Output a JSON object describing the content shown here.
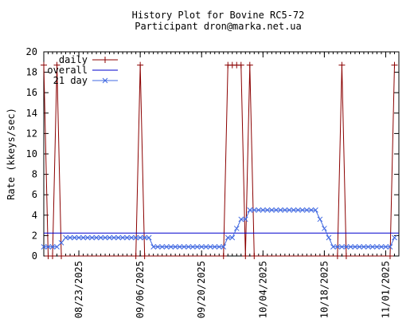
{
  "chart_data": {
    "type": "line",
    "title": "History Plot for Bovine RC5-72",
    "subtitle": "Participant dron@marka.net.ua",
    "xlabel": "",
    "ylabel": "Rate (kkeys/sec)",
    "x_type": "date",
    "xlim": [
      "2025-08-15",
      "2025-11-04"
    ],
    "ylim": [
      0,
      20
    ],
    "y_ticks": [
      0,
      2,
      4,
      6,
      8,
      10,
      12,
      14,
      16,
      18,
      20
    ],
    "x_ticks": [
      {
        "date": "2025-08-23",
        "label": "08/23/2025"
      },
      {
        "date": "2025-09-06",
        "label": "09/06/2025"
      },
      {
        "date": "2025-09-20",
        "label": "09/20/2025"
      },
      {
        "date": "2025-10-04",
        "label": "10/04/2025"
      },
      {
        "date": "2025-10-18",
        "label": "10/18/2025"
      },
      {
        "date": "2025-11-01",
        "label": "11/01/2025"
      }
    ],
    "legend_position": "top-left",
    "grid": false,
    "series": [
      {
        "name": "daily",
        "color": "#8b0000",
        "marker": "plus",
        "points": [
          {
            "x": "2025-08-15",
            "y": 18.7
          },
          {
            "x": "2025-08-16",
            "y": 0
          },
          {
            "x": "2025-08-17",
            "y": 0
          },
          {
            "x": "2025-08-18",
            "y": 18.7
          },
          {
            "x": "2025-08-19",
            "y": 0
          },
          {
            "x": "2025-09-05",
            "y": 0
          },
          {
            "x": "2025-09-06",
            "y": 18.7
          },
          {
            "x": "2025-09-07",
            "y": 0
          },
          {
            "x": "2025-09-25",
            "y": 0
          },
          {
            "x": "2025-09-26",
            "y": 18.7
          },
          {
            "x": "2025-09-27",
            "y": 18.7
          },
          {
            "x": "2025-09-28",
            "y": 18.7
          },
          {
            "x": "2025-09-29",
            "y": 18.7
          },
          {
            "x": "2025-09-30",
            "y": 0
          },
          {
            "x": "2025-10-01",
            "y": 18.7
          },
          {
            "x": "2025-10-02",
            "y": 0
          },
          {
            "x": "2025-10-21",
            "y": 0
          },
          {
            "x": "2025-10-22",
            "y": 18.7
          },
          {
            "x": "2025-10-23",
            "y": 0
          },
          {
            "x": "2025-11-02",
            "y": 0
          },
          {
            "x": "2025-11-03",
            "y": 18.7
          }
        ]
      },
      {
        "name": "overall",
        "color": "#0000cd",
        "marker": "none",
        "points": [
          {
            "x": "2025-08-15",
            "y": 2.25
          },
          {
            "x": "2025-11-04",
            "y": 2.25
          }
        ]
      },
      {
        "name": "21 day",
        "color": "#4169e1",
        "marker": "x",
        "points": [
          {
            "x": "2025-08-15",
            "y": 0.9
          },
          {
            "x": "2025-08-16",
            "y": 0.9
          },
          {
            "x": "2025-08-17",
            "y": 0.9
          },
          {
            "x": "2025-08-18",
            "y": 0.9
          },
          {
            "x": "2025-08-19",
            "y": 1.3
          },
          {
            "x": "2025-08-20",
            "y": 1.8
          },
          {
            "x": "2025-08-21",
            "y": 1.8
          },
          {
            "x": "2025-08-22",
            "y": 1.8
          },
          {
            "x": "2025-08-23",
            "y": 1.8
          },
          {
            "x": "2025-08-24",
            "y": 1.8
          },
          {
            "x": "2025-08-25",
            "y": 1.8
          },
          {
            "x": "2025-08-26",
            "y": 1.8
          },
          {
            "x": "2025-08-27",
            "y": 1.8
          },
          {
            "x": "2025-08-28",
            "y": 1.8
          },
          {
            "x": "2025-08-29",
            "y": 1.8
          },
          {
            "x": "2025-08-30",
            "y": 1.8
          },
          {
            "x": "2025-08-31",
            "y": 1.8
          },
          {
            "x": "2025-09-01",
            "y": 1.8
          },
          {
            "x": "2025-09-02",
            "y": 1.8
          },
          {
            "x": "2025-09-03",
            "y": 1.8
          },
          {
            "x": "2025-09-04",
            "y": 1.8
          },
          {
            "x": "2025-09-05",
            "y": 1.8
          },
          {
            "x": "2025-09-06",
            "y": 1.8
          },
          {
            "x": "2025-09-07",
            "y": 1.8
          },
          {
            "x": "2025-09-08",
            "y": 1.8
          },
          {
            "x": "2025-09-09",
            "y": 0.9
          },
          {
            "x": "2025-09-10",
            "y": 0.9
          },
          {
            "x": "2025-09-11",
            "y": 0.9
          },
          {
            "x": "2025-09-12",
            "y": 0.9
          },
          {
            "x": "2025-09-13",
            "y": 0.9
          },
          {
            "x": "2025-09-14",
            "y": 0.9
          },
          {
            "x": "2025-09-15",
            "y": 0.9
          },
          {
            "x": "2025-09-16",
            "y": 0.9
          },
          {
            "x": "2025-09-17",
            "y": 0.9
          },
          {
            "x": "2025-09-18",
            "y": 0.9
          },
          {
            "x": "2025-09-19",
            "y": 0.9
          },
          {
            "x": "2025-09-20",
            "y": 0.9
          },
          {
            "x": "2025-09-21",
            "y": 0.9
          },
          {
            "x": "2025-09-22",
            "y": 0.9
          },
          {
            "x": "2025-09-23",
            "y": 0.9
          },
          {
            "x": "2025-09-24",
            "y": 0.9
          },
          {
            "x": "2025-09-25",
            "y": 0.9
          },
          {
            "x": "2025-09-26",
            "y": 1.8
          },
          {
            "x": "2025-09-27",
            "y": 1.8
          },
          {
            "x": "2025-09-28",
            "y": 2.7
          },
          {
            "x": "2025-09-29",
            "y": 3.6
          },
          {
            "x": "2025-09-30",
            "y": 3.6
          },
          {
            "x": "2025-10-01",
            "y": 4.5
          },
          {
            "x": "2025-10-02",
            "y": 4.5
          },
          {
            "x": "2025-10-03",
            "y": 4.5
          },
          {
            "x": "2025-10-04",
            "y": 4.5
          },
          {
            "x": "2025-10-05",
            "y": 4.5
          },
          {
            "x": "2025-10-06",
            "y": 4.5
          },
          {
            "x": "2025-10-07",
            "y": 4.5
          },
          {
            "x": "2025-10-08",
            "y": 4.5
          },
          {
            "x": "2025-10-09",
            "y": 4.5
          },
          {
            "x": "2025-10-10",
            "y": 4.5
          },
          {
            "x": "2025-10-11",
            "y": 4.5
          },
          {
            "x": "2025-10-12",
            "y": 4.5
          },
          {
            "x": "2025-10-13",
            "y": 4.5
          },
          {
            "x": "2025-10-14",
            "y": 4.5
          },
          {
            "x": "2025-10-15",
            "y": 4.5
          },
          {
            "x": "2025-10-16",
            "y": 4.5
          },
          {
            "x": "2025-10-17",
            "y": 3.6
          },
          {
            "x": "2025-10-18",
            "y": 2.7
          },
          {
            "x": "2025-10-19",
            "y": 1.8
          },
          {
            "x": "2025-10-20",
            "y": 0.9
          },
          {
            "x": "2025-10-21",
            "y": 0.9
          },
          {
            "x": "2025-10-22",
            "y": 0.9
          },
          {
            "x": "2025-10-23",
            "y": 0.9
          },
          {
            "x": "2025-10-24",
            "y": 0.9
          },
          {
            "x": "2025-10-25",
            "y": 0.9
          },
          {
            "x": "2025-10-26",
            "y": 0.9
          },
          {
            "x": "2025-10-27",
            "y": 0.9
          },
          {
            "x": "2025-10-28",
            "y": 0.9
          },
          {
            "x": "2025-10-29",
            "y": 0.9
          },
          {
            "x": "2025-10-30",
            "y": 0.9
          },
          {
            "x": "2025-10-31",
            "y": 0.9
          },
          {
            "x": "2025-11-01",
            "y": 0.9
          },
          {
            "x": "2025-11-02",
            "y": 0.9
          },
          {
            "x": "2025-11-03",
            "y": 1.8
          }
        ]
      }
    ]
  }
}
